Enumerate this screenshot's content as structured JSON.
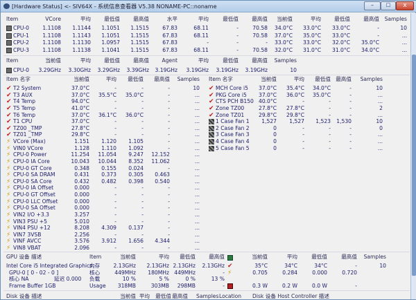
{
  "window": {
    "title": "[Hardware Status] <- SIV64X - 系统信息查看器 V5.38 NONAME-PC::noname",
    "minimize": "–",
    "maximize": "□",
    "close": "x"
  },
  "colors": {
    "text": "#1c1c6a",
    "titlebar": "#b4cde9"
  },
  "cpu_voltage": {
    "headers": [
      "Item",
      "VCore",
      "平均",
      "最低值",
      "最高值",
      "水平",
      "平均",
      "最低值",
      "最高值",
      "当前值",
      "平均",
      "最低值",
      "最高值",
      "Samples"
    ],
    "rows": [
      [
        "CPU-0",
        "1.1108",
        "1.1144",
        "1.1051",
        "1.1515",
        "67.83",
        "68.11",
        "-",
        "70.58",
        "34.0°C",
        "33.0°C",
        "33.0°C",
        "-",
        "10"
      ],
      [
        "CPU-1",
        "1.1108",
        "1.1143",
        "1.1051",
        "1.1515",
        "67.83",
        "68.11",
        "-",
        "70.58",
        "37.0°C",
        "35.0°C",
        "33.0°C",
        "-",
        "..."
      ],
      [
        "CPU-2",
        "1.1108",
        "1.1130",
        "1.0957",
        "1.1515",
        "67.83",
        "-",
        "-",
        "-",
        "33.0°C",
        "33.0°C",
        "32.0°C",
        "35.0°C",
        "..."
      ],
      [
        "CPU-3",
        "1.1108",
        "1.1138",
        "1.1041",
        "1.1515",
        "67.83",
        "68.11",
        "-",
        "70.58",
        "32.0°C",
        "31.0°C",
        "31.0°C",
        "34.0°C",
        "..."
      ]
    ]
  },
  "cpu_clock": {
    "headers": [
      "Item",
      "当前值",
      "平均",
      "最低值",
      "最高值",
      "Agent",
      "平均",
      "最低值",
      "最高值",
      "Samples"
    ],
    "rows": [
      [
        "CPU-0",
        "3.29GHz",
        "3.30GHz",
        "3.29GHz",
        "3.39GHz",
        "3.19GHz",
        "3.19GHz",
        "3.19GHz",
        "3.19GHz",
        "10"
      ]
    ]
  },
  "sensors_left": {
    "headers": [
      "Item 名字",
      "当前值",
      "平均",
      "最低值",
      "最高值",
      "Samples"
    ],
    "rows": [
      {
        "icon": "thermometer-icon",
        "cells": [
          "T2 System",
          "37.0°C",
          "-",
          "-",
          "-",
          "10"
        ]
      },
      {
        "icon": "thermometer-icon",
        "cells": [
          "T3 AUX",
          "37.0°C",
          "35.5°C",
          "35.0°C",
          "-",
          "..."
        ]
      },
      {
        "icon": "thermometer-icon",
        "cells": [
          "T4 Temp",
          "94.0°C",
          "-",
          "-",
          "-",
          "..."
        ]
      },
      {
        "icon": "thermometer-icon",
        "cells": [
          "T5 Temp",
          "41.0°C",
          "-",
          "-",
          "-",
          "..."
        ]
      },
      {
        "icon": "thermometer-icon",
        "cells": [
          "T6 Temp",
          "37.0°C",
          "36.1°C",
          "36.0°C",
          "-",
          "..."
        ]
      },
      {
        "icon": "thermometer-icon",
        "cells": [
          "T1 CPU",
          "37.0°C",
          "-",
          "-",
          "-",
          "..."
        ]
      },
      {
        "icon": "thermometer-icon",
        "cells": [
          "TZ00 _TMP",
          "27.8°C",
          "-",
          "-",
          "-",
          "..."
        ]
      },
      {
        "icon": "thermometer-icon",
        "cells": [
          "TZ01 _TMP",
          "29.8°C",
          "-",
          "-",
          "-",
          "..."
        ]
      },
      {
        "icon": "voltage-icon",
        "cells": [
          "VCore (Max)",
          "1.151",
          "1.120",
          "1.105",
          "-",
          "..."
        ]
      },
      {
        "icon": "voltage-icon",
        "cells": [
          "VIN0 VCore",
          "1.128",
          "1.110",
          "1.092",
          "-",
          "..."
        ]
      },
      {
        "icon": "voltage-icon",
        "cells": [
          "CPU-0 Power",
          "11.254",
          "11.054",
          "9.247",
          "12.152",
          "..."
        ]
      },
      {
        "icon": "voltage-icon",
        "cells": [
          "CPU-0 IA Core",
          "10.043",
          "10.044",
          "8.352",
          "11.062",
          "..."
        ]
      },
      {
        "icon": "voltage-icon",
        "cells": [
          "CPU-0 GT Core",
          "0.348",
          "0.155",
          "0.024",
          "-",
          "..."
        ]
      },
      {
        "icon": "voltage-icon",
        "cells": [
          "CPU-0 SA DRAM",
          "0.431",
          "0.373",
          "0.305",
          "0.463",
          "..."
        ]
      },
      {
        "icon": "voltage-icon",
        "cells": [
          "CPU-0 SA Core",
          "0.432",
          "0.482",
          "0.398",
          "0.540",
          "..."
        ]
      },
      {
        "icon": "voltage-icon",
        "cells": [
          "CPU-0 IA Offset",
          "0.000",
          "-",
          "-",
          "-",
          "..."
        ]
      },
      {
        "icon": "voltage-icon",
        "cells": [
          "CPU-0 GT Offset",
          "0.000",
          "-",
          "-",
          "-",
          "..."
        ]
      },
      {
        "icon": "voltage-icon",
        "cells": [
          "CPU-0 LLC Offset",
          "0.000",
          "-",
          "-",
          "-",
          "..."
        ]
      },
      {
        "icon": "voltage-icon",
        "cells": [
          "CPU-0 SA Offset",
          "0.000",
          "-",
          "-",
          "-",
          "..."
        ]
      },
      {
        "icon": "voltage-icon",
        "cells": [
          "VIN2 I/O +3.3",
          "3.257",
          "-",
          "-",
          "-",
          "..."
        ]
      },
      {
        "icon": "voltage-icon",
        "cells": [
          "VIN3 PSU +5",
          "5.010",
          "-",
          "-",
          "-",
          "..."
        ]
      },
      {
        "icon": "voltage-icon",
        "cells": [
          "VIN4 PSU +12",
          "8.208",
          "4.309",
          "0.137",
          "-",
          "..."
        ]
      },
      {
        "icon": "voltage-icon",
        "cells": [
          "VIN7 3VSB",
          "2.256",
          "-",
          "-",
          "-",
          "..."
        ]
      },
      {
        "icon": "voltage-icon",
        "cells": [
          "VINF AVCC",
          "3.576",
          "3.912",
          "1.656",
          "4.344",
          "..."
        ]
      },
      {
        "icon": "voltage-icon",
        "cells": [
          "VIN8 VBAT",
          "2.096",
          "-",
          "-",
          "-",
          "..."
        ]
      }
    ]
  },
  "sensors_right": {
    "headers": [
      "Item 名字",
      "当前值",
      "平均",
      "最低值",
      "最高值",
      "Samples"
    ],
    "rows": [
      {
        "icon": "thermometer-icon",
        "cells": [
          "MCH Core i5",
          "37.0°C",
          "35.4°C",
          "34.0°C",
          "-",
          "10"
        ]
      },
      {
        "icon": "thermometer-icon",
        "cells": [
          "PKG Core i5",
          "37.0°C",
          "36.0°C",
          "35.0°C",
          "-",
          "..."
        ]
      },
      {
        "icon": "thermometer-icon",
        "cells": [
          "CTS PCH B150",
          "40.0°C",
          "-",
          "-",
          "-",
          "..."
        ]
      },
      {
        "icon": "thermometer-icon",
        "cells": [
          "Zone TZ00",
          "27.8°C",
          "27.8°C",
          "-",
          "-",
          "2"
        ]
      },
      {
        "icon": "thermometer-icon",
        "cells": [
          "Zone TZ01",
          "29.8°C",
          "29.8°C",
          "-",
          "-",
          "..."
        ]
      },
      {
        "icon": "fan-icon",
        "cells": [
          "1 Case Fan 1",
          "1,527",
          "1,527",
          "1,523",
          "1,530",
          "10"
        ]
      },
      {
        "icon": "fan-icon",
        "cells": [
          "2 Case Fan 2",
          "0",
          "-",
          "-",
          "-",
          "0"
        ]
      },
      {
        "icon": "fan-icon",
        "cells": [
          "3 Case Fan 3",
          "0",
          "-",
          "-",
          "-",
          "..."
        ]
      },
      {
        "icon": "fan-icon",
        "cells": [
          "4 Case Fan 4",
          "0",
          "-",
          "-",
          "-",
          "..."
        ]
      },
      {
        "icon": "fan-icon",
        "cells": [
          "5 Case Fan 5",
          "0",
          "-",
          "-",
          "-",
          "..."
        ]
      }
    ]
  },
  "gpu": {
    "header_label": "GPU 设备 描述",
    "headers": [
      "Item",
      "当前值",
      "平均",
      "最低值",
      "最高值",
      "当前值",
      "平均",
      "最低值",
      "最高值",
      "Samples"
    ],
    "rows": [
      {
        "label": "Intel Core i5 Integrated Graphics",
        "icon": "thermometer-icon",
        "cells": [
          "内存",
          "2.13GHz",
          "2.13GHz",
          "2.13GHz",
          "2.13GHz",
          "35°C",
          "34°C",
          "34°C",
          "-",
          "10"
        ]
      },
      {
        "label": "GPU-0 [ 0 - 02 - 0 ]",
        "icon": "voltage-icon",
        "cells": [
          "核心",
          "449MHz",
          "180MHz",
          "449MHz",
          "-",
          "0.705",
          "0.284",
          "0.000",
          "0.720",
          ""
        ]
      },
      {
        "label": "核心 NA",
        "extra": "延迟 0.000",
        "icon": "",
        "cells": [
          "负载",
          "10 %",
          "5 %",
          "0 %",
          "13 %",
          "",
          "",
          "",
          "",
          ""
        ]
      },
      {
        "label": "Frame Buffer 1GB",
        "icon": "power-icon",
        "cells": [
          "Usage",
          "318MB",
          "303MB",
          "298MB",
          "-",
          "0.3 W",
          "0.2 W",
          "0.0 W",
          "-",
          ""
        ]
      }
    ]
  },
  "disk": {
    "header_label": "Disk 设备 描述",
    "headers": [
      "当前值",
      "平均",
      "最低值",
      "最高值",
      "Samples",
      "Location"
    ],
    "controller_label": "Disk 设备 Host Controller 描述"
  }
}
